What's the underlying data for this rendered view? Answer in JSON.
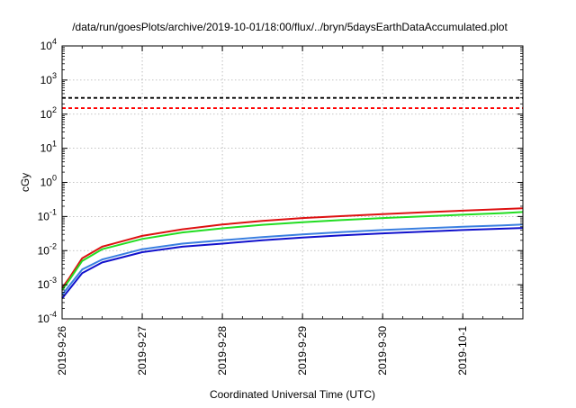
{
  "chart_data": {
    "type": "line",
    "title": "/data/run/goesPlots/archive/2019-10-01/18:00/flux/../bryn/5daysEarthDataAccumulated.plot",
    "xlabel": "Coordinated Universal Time (UTC)",
    "ylabel": "cGy",
    "y_scale": "log",
    "ylim": [
      0.0001,
      10000
    ],
    "y_ticks": [
      {
        "value": 0.0001,
        "base": "10",
        "exp": "-4"
      },
      {
        "value": 0.001,
        "base": "10",
        "exp": "-3"
      },
      {
        "value": 0.01,
        "base": "10",
        "exp": "-2"
      },
      {
        "value": 0.1,
        "base": "10",
        "exp": "-1"
      },
      {
        "value": 1,
        "base": "10",
        "exp": "0"
      },
      {
        "value": 10,
        "base": "10",
        "exp": "1"
      },
      {
        "value": 100,
        "base": "10",
        "exp": "2"
      },
      {
        "value": 1000,
        "base": "10",
        "exp": "3"
      },
      {
        "value": 10000,
        "base": "10",
        "exp": "4"
      }
    ],
    "x_ticks": [
      "2019-9-26",
      "2019-9-27",
      "2019-9-28",
      "2019-9-29",
      "2019-9-30",
      "2019-10-1"
    ],
    "xlim": [
      "2019-9-26 00:00",
      "2019-10-1 18:00"
    ],
    "grid": true,
    "x": [
      "2019-9-26 00:00",
      "2019-9-26 02:00",
      "2019-9-26 06:00",
      "2019-9-26 12:00",
      "2019-9-27 00:00",
      "2019-9-27 12:00",
      "2019-9-28 00:00",
      "2019-9-28 12:00",
      "2019-9-29 00:00",
      "2019-9-29 12:00",
      "2019-9-30 00:00",
      "2019-9-30 12:00",
      "2019-10-1 00:00",
      "2019-10-1 12:00",
      "2019-10-1 18:00"
    ],
    "series": [
      {
        "color": "#dd1111",
        "values": [
          0.0008,
          0.0015,
          0.006,
          0.013,
          0.027,
          0.042,
          0.058,
          0.074,
          0.09,
          0.103,
          0.118,
          0.132,
          0.148,
          0.165,
          0.175
        ]
      },
      {
        "color": "#22dd22",
        "values": [
          0.0007,
          0.0013,
          0.005,
          0.011,
          0.022,
          0.034,
          0.045,
          0.057,
          0.068,
          0.079,
          0.09,
          0.101,
          0.113,
          0.126,
          0.135
        ]
      },
      {
        "color": "#3a7fe0",
        "values": [
          0.0005,
          0.0009,
          0.0028,
          0.0055,
          0.011,
          0.016,
          0.02,
          0.025,
          0.03,
          0.035,
          0.04,
          0.045,
          0.05,
          0.055,
          0.058
        ]
      },
      {
        "color": "#1111cc",
        "values": [
          0.0004,
          0.0007,
          0.0022,
          0.0045,
          0.009,
          0.013,
          0.016,
          0.02,
          0.024,
          0.028,
          0.032,
          0.036,
          0.04,
          0.044,
          0.046
        ]
      }
    ],
    "thresholds": [
      {
        "value": 300,
        "color": "#000000",
        "style": "dashed"
      },
      {
        "value": 150,
        "color": "#ff0000",
        "style": "dashed"
      }
    ]
  }
}
